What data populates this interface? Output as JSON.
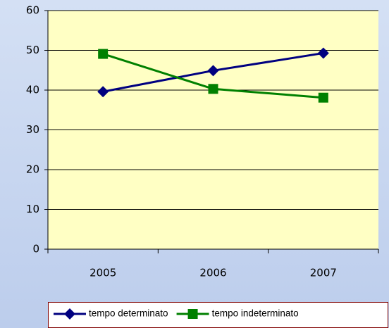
{
  "chart_data": {
    "type": "line",
    "categories": [
      "2005",
      "2006",
      "2007"
    ],
    "series": [
      {
        "name": "tempo determinato",
        "color": "#000080",
        "marker": "diamond",
        "values": [
          39.6,
          44.9,
          49.3
        ]
      },
      {
        "name": "tempo indeterminato",
        "color": "#008000",
        "marker": "square",
        "values": [
          49.1,
          40.3,
          38.1
        ]
      }
    ],
    "ylim": [
      0,
      60
    ],
    "yticks": [
      0,
      10,
      20,
      30,
      40,
      50,
      60
    ],
    "grid": true,
    "legend": "bottom"
  }
}
